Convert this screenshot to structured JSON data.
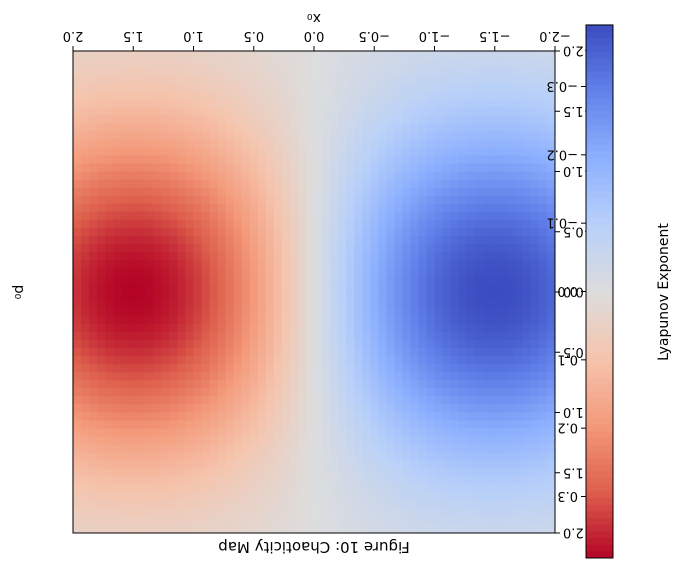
{
  "chart_data": {
    "type": "heatmap",
    "title": "Figure 10: Chaoticity Map",
    "xlabel": "x₀",
    "ylabel": "p₀",
    "xlim": [
      -2.0,
      2.0
    ],
    "ylim": [
      -2.0,
      2.0
    ],
    "x_ticks": [
      "−2.0",
      "−1.5",
      "−1.0",
      "−0.5",
      "0.0",
      "0.5",
      "1.0",
      "1.5",
      "2.0"
    ],
    "y_ticks": [
      "−2.0",
      "−1.5",
      "−1.0",
      "−0.5",
      "0.0",
      "0.5",
      "1.0",
      "1.5",
      "2.0"
    ],
    "colorbar": {
      "label": "Lyapunov Exponent",
      "colormap": "coolwarm",
      "vmin": -0.39,
      "vmax": 0.39,
      "ticks": [
        "−0.3",
        "−0.2",
        "−0.1",
        "0.0",
        "0.1",
        "0.2",
        "0.3"
      ]
    },
    "field": {
      "formula": "0.39 * sin(x0 * pi/3) * exp(-p0^2 / 2)",
      "note_peaks": [
        {
          "x0": 1.5,
          "p0": 0.0,
          "value": 0.39
        },
        {
          "x0": -1.5,
          "p0": 0.0,
          "value": -0.39
        }
      ]
    },
    "grid": false,
    "orientation": "rendered upside down (rotated 180 degrees)"
  },
  "colors": {
    "cmap_low": "#3b4cc0",
    "cmap_mid": "#dddddd",
    "cmap_high": "#b40426"
  }
}
